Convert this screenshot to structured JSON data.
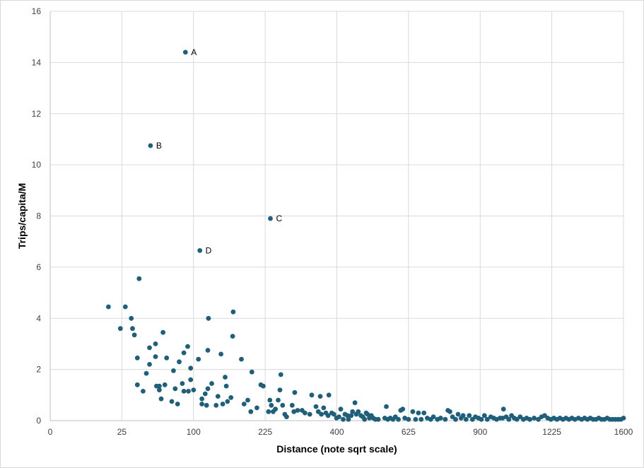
{
  "chart_data": {
    "type": "scatter",
    "title": "",
    "xlabel": "Distance (note sqrt scale)",
    "ylabel": "Trips/capita/M",
    "x_scale": "sqrt",
    "xlim": [
      0,
      1600
    ],
    "ylim": [
      0,
      16
    ],
    "x_ticks": [
      0,
      25,
      100,
      225,
      400,
      625,
      900,
      1225,
      1600
    ],
    "y_ticks": [
      0,
      2,
      4,
      6,
      8,
      10,
      12,
      14,
      16
    ],
    "grid": true,
    "legend": "none",
    "color": "#1f5f7a",
    "annotations": [
      {
        "label": "A",
        "x": 89,
        "y": 14.4
      },
      {
        "label": "B",
        "x": 49,
        "y": 10.75
      },
      {
        "label": "C",
        "x": 236,
        "y": 7.9
      },
      {
        "label": "D",
        "x": 109,
        "y": 6.65
      }
    ],
    "points": [
      [
        89,
        14.4
      ],
      [
        49,
        10.75
      ],
      [
        236,
        7.9
      ],
      [
        109,
        6.65
      ],
      [
        16.5,
        4.45
      ],
      [
        24,
        3.6
      ],
      [
        27.5,
        4.45
      ],
      [
        32,
        4.0
      ],
      [
        33,
        3.6
      ],
      [
        34.5,
        3.35
      ],
      [
        37,
        2.45
      ],
      [
        37,
        1.4
      ],
      [
        38.5,
        5.55
      ],
      [
        42,
        1.15
      ],
      [
        45,
        1.85
      ],
      [
        48,
        2.2
      ],
      [
        48,
        2.85
      ],
      [
        54,
        2.5
      ],
      [
        54,
        3.0
      ],
      [
        55,
        1.35
      ],
      [
        58,
        1.35
      ],
      [
        58,
        1.2
      ],
      [
        60,
        0.85
      ],
      [
        62,
        3.45
      ],
      [
        64,
        1.4
      ],
      [
        66,
        2.45
      ],
      [
        72,
        0.75
      ],
      [
        74,
        1.95
      ],
      [
        76,
        1.25
      ],
      [
        79,
        0.65
      ],
      [
        81,
        2.3
      ],
      [
        85,
        1.45
      ],
      [
        87,
        1.15
      ],
      [
        87,
        2.65
      ],
      [
        92,
        2.9
      ],
      [
        93,
        1.15
      ],
      [
        96,
        1.6
      ],
      [
        96,
        2.05
      ],
      [
        100,
        1.2
      ],
      [
        107,
        2.4
      ],
      [
        112,
        0.65
      ],
      [
        112,
        0.85
      ],
      [
        117,
        1.05
      ],
      [
        119,
        0.6
      ],
      [
        121,
        2.75
      ],
      [
        122,
        4.0
      ],
      [
        121,
        1.25
      ],
      [
        127,
        1.45
      ],
      [
        134,
        0.6
      ],
      [
        137,
        0.95
      ],
      [
        142,
        2.6
      ],
      [
        145,
        0.65
      ],
      [
        149,
        1.7
      ],
      [
        151,
        1.35
      ],
      [
        153,
        0.75
      ],
      [
        159,
        0.9
      ],
      [
        162,
        3.3
      ],
      [
        163,
        4.25
      ],
      [
        178,
        2.4
      ],
      [
        183,
        0.65
      ],
      [
        190,
        0.8
      ],
      [
        196,
        0.35
      ],
      [
        198,
        1.9
      ],
      [
        208,
        0.5
      ],
      [
        216,
        1.4
      ],
      [
        221,
        1.35
      ],
      [
        232,
        0.35
      ],
      [
        235,
        0.8
      ],
      [
        238,
        0.6
      ],
      [
        242,
        0.35
      ],
      [
        247,
        0.45
      ],
      [
        253,
        0.8
      ],
      [
        257,
        1.2
      ],
      [
        259,
        1.8
      ],
      [
        263,
        0.6
      ],
      [
        268,
        0.25
      ],
      [
        272,
        0.15
      ],
      [
        285,
        0.6
      ],
      [
        289,
        0.35
      ],
      [
        291,
        1.1
      ],
      [
        298,
        0.4
      ],
      [
        309,
        0.4
      ],
      [
        316,
        0.3
      ],
      [
        328,
        0.25
      ],
      [
        333,
        1.0
      ],
      [
        344,
        0.55
      ],
      [
        350,
        0.35
      ],
      [
        355,
        0.95
      ],
      [
        358,
        0.25
      ],
      [
        364,
        0.5
      ],
      [
        370,
        0.3
      ],
      [
        376,
        0.2
      ],
      [
        378,
        1.0
      ],
      [
        386,
        0.3
      ],
      [
        392,
        0.25
      ],
      [
        399,
        0.1
      ],
      [
        406,
        0.15
      ],
      [
        411,
        0.45
      ],
      [
        418,
        0.05
      ],
      [
        423,
        0.25
      ],
      [
        430,
        0.2
      ],
      [
        433,
        0.05
      ],
      [
        441,
        0.2
      ],
      [
        445,
        0.35
      ],
      [
        452,
        0.7
      ],
      [
        456,
        0.25
      ],
      [
        462,
        0.35
      ],
      [
        470,
        0.2
      ],
      [
        476,
        0.15
      ],
      [
        481,
        0.05
      ],
      [
        486,
        0.3
      ],
      [
        490,
        0.25
      ],
      [
        496,
        0.1
      ],
      [
        502,
        0.2
      ],
      [
        508,
        0.1
      ],
      [
        515,
        0.05
      ],
      [
        524,
        0.05
      ],
      [
        545,
        0.1
      ],
      [
        550,
        0.55
      ],
      [
        555,
        0.05
      ],
      [
        563,
        0.1
      ],
      [
        572,
        0.05
      ],
      [
        580,
        0.15
      ],
      [
        590,
        0.05
      ],
      [
        598,
        0.4
      ],
      [
        605,
        0.45
      ],
      [
        612,
        0.1
      ],
      [
        625,
        0.05
      ],
      [
        640,
        0.35
      ],
      [
        650,
        0.05
      ],
      [
        660,
        0.3
      ],
      [
        670,
        0.05
      ],
      [
        680,
        0.3
      ],
      [
        692,
        0.1
      ],
      [
        705,
        0.05
      ],
      [
        715,
        0.15
      ],
      [
        730,
        0.05
      ],
      [
        742,
        0.1
      ],
      [
        760,
        0.05
      ],
      [
        770,
        0.4
      ],
      [
        778,
        0.35
      ],
      [
        788,
        0.15
      ],
      [
        800,
        0.05
      ],
      [
        810,
        0.25
      ],
      [
        822,
        0.1
      ],
      [
        830,
        0.2
      ],
      [
        842,
        0.05
      ],
      [
        855,
        0.2
      ],
      [
        868,
        0.05
      ],
      [
        880,
        0.15
      ],
      [
        893,
        0.1
      ],
      [
        905,
        0.05
      ],
      [
        918,
        0.2
      ],
      [
        930,
        0.05
      ],
      [
        945,
        0.15
      ],
      [
        958,
        0.1
      ],
      [
        970,
        0.05
      ],
      [
        985,
        0.1
      ],
      [
        996,
        0.1
      ],
      [
        1000,
        0.45
      ],
      [
        1012,
        0.15
      ],
      [
        1024,
        0.05
      ],
      [
        1036,
        0.2
      ],
      [
        1048,
        0.1
      ],
      [
        1060,
        0.05
      ],
      [
        1075,
        0.15
      ],
      [
        1090,
        0.05
      ],
      [
        1105,
        0.1
      ],
      [
        1120,
        0.05
      ],
      [
        1140,
        0.1
      ],
      [
        1160,
        0.05
      ],
      [
        1175,
        0.15
      ],
      [
        1190,
        0.2
      ],
      [
        1205,
        0.1
      ],
      [
        1220,
        0.05
      ],
      [
        1235,
        0.1
      ],
      [
        1250,
        0.05
      ],
      [
        1265,
        0.1
      ],
      [
        1280,
        0.05
      ],
      [
        1295,
        0.1
      ],
      [
        1310,
        0.05
      ],
      [
        1325,
        0.1
      ],
      [
        1340,
        0.05
      ],
      [
        1358,
        0.1
      ],
      [
        1375,
        0.05
      ],
      [
        1390,
        0.1
      ],
      [
        1405,
        0.05
      ],
      [
        1420,
        0.1
      ],
      [
        1435,
        0.05
      ],
      [
        1450,
        0.05
      ],
      [
        1465,
        0.1
      ],
      [
        1480,
        0.05
      ],
      [
        1495,
        0.05
      ],
      [
        1510,
        0.1
      ],
      [
        1525,
        0.05
      ],
      [
        1540,
        0.05
      ],
      [
        1555,
        0.05
      ],
      [
        1570,
        0.05
      ],
      [
        1585,
        0.05
      ],
      [
        1600,
        0.1
      ]
    ]
  }
}
